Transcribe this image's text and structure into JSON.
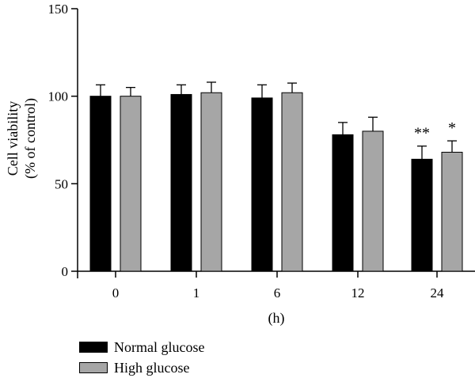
{
  "chart_data": {
    "type": "bar",
    "categories": [
      "0",
      "1",
      "6",
      "12",
      "24"
    ],
    "series": [
      {
        "name": "Normal glucose",
        "color": "#000000",
        "values": [
          100,
          101,
          99,
          78,
          64
        ],
        "errors": [
          6.5,
          5.5,
          7.5,
          7,
          7.5
        ],
        "annotations": [
          "",
          "",
          "",
          "",
          "**"
        ]
      },
      {
        "name": "High glucose",
        "color": "#a6a6a6",
        "values": [
          100,
          102,
          102,
          80,
          68
        ],
        "errors": [
          5,
          6,
          5.5,
          8,
          6.5
        ],
        "annotations": [
          "",
          "",
          "",
          "",
          "*"
        ]
      }
    ],
    "xlabel": "(h)",
    "ylabel_line1": "Cell viability",
    "ylabel_line2": "(% of control)",
    "ylim": [
      0,
      150
    ],
    "yticks": [
      "0",
      "50",
      "100",
      "150"
    ],
    "grid": false,
    "legend_position": "bottom-left"
  }
}
